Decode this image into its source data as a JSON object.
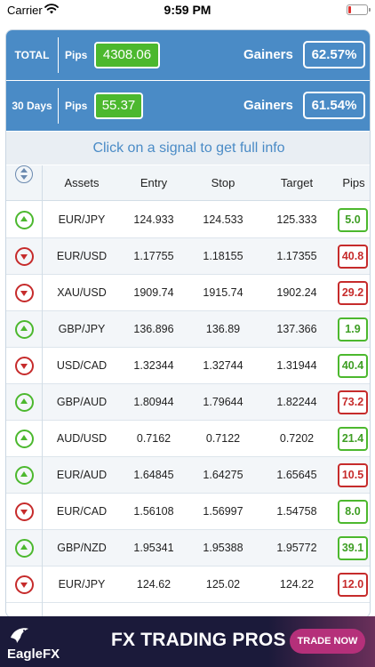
{
  "status_bar": {
    "carrier": "Carrier",
    "time": "9:59 PM"
  },
  "summary": {
    "total": {
      "label": "TOTAL",
      "pips_label": "Pips",
      "pips_value": "4308.06",
      "gainers_label": "Gainers",
      "gainers_value": "62.57%"
    },
    "last30": {
      "label": "30 Days",
      "pips_label": "Pips",
      "pips_value": "55.37",
      "gainers_label": "Gainers",
      "gainers_value": "61.54%"
    }
  },
  "hint": "Click on a signal to get full info",
  "table": {
    "headers": {
      "assets": "Assets",
      "entry": "Entry",
      "stop": "Stop",
      "target": "Target",
      "pips": "Pips"
    },
    "rows": [
      {
        "direction": "up",
        "asset": "EUR/JPY",
        "entry": "124.933",
        "stop": "124.533",
        "target": "125.333",
        "pips": "5.0",
        "pips_status": "positive"
      },
      {
        "direction": "down",
        "asset": "EUR/USD",
        "entry": "1.17755",
        "stop": "1.18155",
        "target": "1.17355",
        "pips": "40.8",
        "pips_status": "negative"
      },
      {
        "direction": "down",
        "asset": "XAU/USD",
        "entry": "1909.74",
        "stop": "1915.74",
        "target": "1902.24",
        "pips": "29.2",
        "pips_status": "negative"
      },
      {
        "direction": "up",
        "asset": "GBP/JPY",
        "entry": "136.896",
        "stop": "136.89",
        "target": "137.366",
        "pips": "1.9",
        "pips_status": "positive"
      },
      {
        "direction": "down",
        "asset": "USD/CAD",
        "entry": "1.32344",
        "stop": "1.32744",
        "target": "1.31944",
        "pips": "40.4",
        "pips_status": "positive"
      },
      {
        "direction": "up",
        "asset": "GBP/AUD",
        "entry": "1.80944",
        "stop": "1.79644",
        "target": "1.82244",
        "pips": "73.2",
        "pips_status": "negative"
      },
      {
        "direction": "up",
        "asset": "AUD/USD",
        "entry": "0.7162",
        "stop": "0.7122",
        "target": "0.7202",
        "pips": "21.4",
        "pips_status": "positive"
      },
      {
        "direction": "up",
        "asset": "EUR/AUD",
        "entry": "1.64845",
        "stop": "1.64275",
        "target": "1.65645",
        "pips": "10.5",
        "pips_status": "negative"
      },
      {
        "direction": "down",
        "asset": "EUR/CAD",
        "entry": "1.56108",
        "stop": "1.56997",
        "target": "1.54758",
        "pips": "8.0",
        "pips_status": "positive"
      },
      {
        "direction": "up",
        "asset": "GBP/NZD",
        "entry": "1.95341",
        "stop": "1.95388",
        "target": "1.95772",
        "pips": "39.1",
        "pips_status": "positive"
      },
      {
        "direction": "down",
        "asset": "EUR/JPY",
        "entry": "124.62",
        "stop": "125.02",
        "target": "124.22",
        "pips": "12.0",
        "pips_status": "negative"
      }
    ]
  },
  "ad": {
    "brand": "EagleFX",
    "title": "FX TRADING PROS",
    "cta": "TRADE NOW",
    "colors": {
      "background": "#1b1a3a",
      "cta": "#b5307a"
    }
  },
  "colors": {
    "header_blue": "#4a8bc6",
    "positive": "#4cb82e",
    "negative": "#c62b2b"
  }
}
